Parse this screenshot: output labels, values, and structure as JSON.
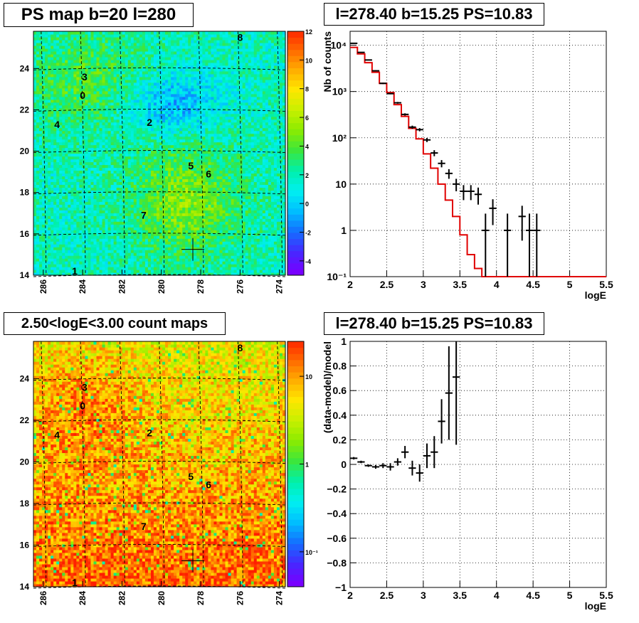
{
  "panels": {
    "ps_map": {
      "title": "PS map b=20 l=280"
    },
    "spectrum": {
      "title": "l=278.40 b=15.25 PS=10.83"
    },
    "count_map": {
      "title": "2.50<logE<3.00 count maps"
    },
    "residual": {
      "title": "l=278.40 b=15.25 PS=10.83"
    }
  },
  "chart_data": [
    {
      "type": "heatmap",
      "id": "ps_map",
      "title": "PS map b=20 l=280",
      "x_ticks": [
        "286",
        "284",
        "282",
        "280",
        "278",
        "276",
        "274"
      ],
      "x_tick_values": [
        286,
        284,
        282,
        280,
        278,
        276,
        274
      ],
      "xlim": [
        286.5,
        273.7
      ],
      "y_ticks": [
        "14",
        "16",
        "18",
        "20",
        "22",
        "24"
      ],
      "y_tick_values": [
        14,
        16,
        18,
        20,
        22,
        24
      ],
      "ylim": [
        14,
        25.8
      ],
      "colorbar_ticks": [
        "12",
        "10",
        "8",
        "6",
        "4",
        "2",
        "0",
        "-2",
        "-4"
      ],
      "colorbar_tick_values": [
        12,
        10,
        8,
        6,
        4,
        2,
        0,
        -2,
        -4
      ],
      "zlim": [
        -5,
        12
      ],
      "grid": true,
      "source_labels": [
        {
          "label": "0",
          "l": 284.0,
          "b": 22.7
        },
        {
          "label": "1",
          "l": 284.4,
          "b": 14.2
        },
        {
          "label": "2",
          "l": 280.6,
          "b": 21.4
        },
        {
          "label": "3",
          "l": 283.9,
          "b": 23.6
        },
        {
          "label": "4",
          "l": 285.3,
          "b": 21.3
        },
        {
          "label": "5",
          "l": 278.5,
          "b": 19.3
        },
        {
          "label": "6",
          "l": 277.6,
          "b": 18.9
        },
        {
          "label": "7",
          "l": 280.9,
          "b": 16.9
        },
        {
          "label": "8",
          "l": 276.0,
          "b": 25.5
        }
      ],
      "marker": {
        "l": 278.4,
        "b": 15.25
      }
    },
    {
      "type": "line",
      "id": "spectrum",
      "title": "l=278.40 b=15.25 PS=10.83",
      "xlabel": "logE",
      "ylabel": "Nb of counts",
      "y_scale": "log",
      "xlim": [
        2,
        5.5
      ],
      "ylim": [
        0.1,
        20000
      ],
      "x_ticks": [
        "2",
        "2.5",
        "3",
        "3.5",
        "4",
        "4.5",
        "5",
        "5.5"
      ],
      "x_tick_values": [
        2,
        2.5,
        3,
        3.5,
        4,
        4.5,
        5,
        5.5
      ],
      "y_ticks": [
        "10⁻¹",
        "1",
        "10",
        "10²",
        "10³",
        "10⁴"
      ],
      "y_tick_values": [
        0.1,
        1,
        10,
        100,
        1000,
        10000
      ],
      "grid": true,
      "model_bins": {
        "edges": [
          2.0,
          2.1,
          2.2,
          2.3,
          2.4,
          2.5,
          2.6,
          2.7,
          2.8,
          2.9,
          3.0,
          3.1,
          3.2,
          3.3,
          3.4,
          3.5,
          3.6,
          3.7,
          3.8,
          3.9,
          4.0,
          4.1,
          4.2,
          4.3,
          4.4,
          4.5,
          4.6,
          4.7,
          4.8,
          4.9,
          5.0,
          5.1,
          5.2,
          5.3,
          5.4,
          5.5
        ],
        "values": [
          9000,
          6500,
          4200,
          2600,
          1500,
          950,
          520,
          290,
          160,
          95,
          45,
          22,
          10,
          4.5,
          2,
          0.8,
          0.3,
          0.15,
          0.1,
          0.1,
          0.1,
          0.1,
          0.1,
          0.1,
          0.1,
          0.1,
          0.1,
          0.1,
          0.1,
          0.1,
          0.1,
          0.1,
          0.1,
          0.1,
          0.1
        ]
      },
      "data_points": [
        {
          "x": 2.05,
          "y": 11000,
          "lo": 10800,
          "hi": 11200
        },
        {
          "x": 2.15,
          "y": 7000,
          "lo": 6850,
          "hi": 7150
        },
        {
          "x": 2.25,
          "y": 4800,
          "lo": 4700,
          "hi": 4900
        },
        {
          "x": 2.35,
          "y": 2800,
          "lo": 2720,
          "hi": 2880
        },
        {
          "x": 2.45,
          "y": 1500,
          "lo": 1450,
          "hi": 1550
        },
        {
          "x": 2.55,
          "y": 900,
          "lo": 870,
          "hi": 930
        },
        {
          "x": 2.65,
          "y": 570,
          "lo": 545,
          "hi": 595
        },
        {
          "x": 2.75,
          "y": 320,
          "lo": 302,
          "hi": 338
        },
        {
          "x": 2.85,
          "y": 170,
          "lo": 157,
          "hi": 183
        },
        {
          "x": 2.95,
          "y": 150,
          "lo": 138,
          "hi": 162
        },
        {
          "x": 3.05,
          "y": 90,
          "lo": 81,
          "hi": 99
        },
        {
          "x": 3.15,
          "y": 47,
          "lo": 40,
          "hi": 54
        },
        {
          "x": 3.25,
          "y": 28,
          "lo": 23,
          "hi": 33
        },
        {
          "x": 3.35,
          "y": 17,
          "lo": 13,
          "hi": 21
        },
        {
          "x": 3.45,
          "y": 10,
          "lo": 7,
          "hi": 13
        },
        {
          "x": 3.55,
          "y": 7,
          "lo": 4.5,
          "hi": 9.5
        },
        {
          "x": 3.65,
          "y": 7,
          "lo": 4.5,
          "hi": 9.5
        },
        {
          "x": 3.75,
          "y": 6,
          "lo": 3.6,
          "hi": 8.4
        },
        {
          "x": 3.85,
          "y": 1,
          "lo": 0.1,
          "hi": 2.3
        },
        {
          "x": 3.95,
          "y": 3,
          "lo": 1.3,
          "hi": 4.7
        },
        {
          "x": 4.15,
          "y": 1,
          "lo": 0.1,
          "hi": 2.3
        },
        {
          "x": 4.35,
          "y": 2,
          "lo": 0.6,
          "hi": 3.4
        },
        {
          "x": 4.45,
          "y": 1,
          "lo": 0.1,
          "hi": 2.3
        },
        {
          "x": 4.55,
          "y": 1,
          "lo": 0.1,
          "hi": 2.3
        }
      ],
      "model_color": "#e00000",
      "data_color": "#000000"
    },
    {
      "type": "heatmap",
      "id": "count_map",
      "title": "2.50<logE<3.00 count maps",
      "x_ticks": [
        "286",
        "284",
        "282",
        "280",
        "278",
        "276",
        "274"
      ],
      "x_tick_values": [
        286,
        284,
        282,
        280,
        278,
        276,
        274
      ],
      "xlim": [
        286.5,
        273.7
      ],
      "y_ticks": [
        "14",
        "16",
        "18",
        "20",
        "22",
        "24"
      ],
      "y_tick_values": [
        14,
        16,
        18,
        20,
        22,
        24
      ],
      "ylim": [
        14,
        25.8
      ],
      "colorbar_ticks": [
        "10",
        "1",
        "10⁻¹"
      ],
      "colorbar_tick_values": [
        10,
        1,
        0.1
      ],
      "z_scale": "log",
      "zlim": [
        0.04,
        25
      ],
      "grid": true,
      "source_labels": [
        {
          "label": "0",
          "l": 284.0,
          "b": 22.7
        },
        {
          "label": "1",
          "l": 284.4,
          "b": 14.2
        },
        {
          "label": "2",
          "l": 280.6,
          "b": 21.4
        },
        {
          "label": "3",
          "l": 283.9,
          "b": 23.6
        },
        {
          "label": "4",
          "l": 285.3,
          "b": 21.3
        },
        {
          "label": "5",
          "l": 278.5,
          "b": 19.3
        },
        {
          "label": "6",
          "l": 277.6,
          "b": 18.9
        },
        {
          "label": "7",
          "l": 280.9,
          "b": 16.9
        },
        {
          "label": "8",
          "l": 276.0,
          "b": 25.5
        }
      ],
      "marker": {
        "l": 278.4,
        "b": 15.25
      }
    },
    {
      "type": "scatter",
      "id": "residual",
      "title": "l=278.40 b=15.25 PS=10.83",
      "xlabel": "logE",
      "ylabel": "(data-model)/model",
      "xlim": [
        2,
        5.5
      ],
      "ylim": [
        -1,
        1
      ],
      "x_ticks": [
        "2",
        "2.5",
        "3",
        "3.5",
        "4",
        "4.5",
        "5",
        "5.5"
      ],
      "x_tick_values": [
        2,
        2.5,
        3,
        3.5,
        4,
        4.5,
        5,
        5.5
      ],
      "y_ticks": [
        "−1",
        "−0.8",
        "−0.6",
        "−0.4",
        "−0.2",
        "0",
        "0.2",
        "0.4",
        "0.6",
        "0.8",
        "1"
      ],
      "y_tick_values": [
        -1,
        -0.8,
        -0.6,
        -0.4,
        -0.2,
        0,
        0.2,
        0.4,
        0.6,
        0.8,
        1
      ],
      "grid": true,
      "data_points": [
        {
          "x": 2.05,
          "y": 0.05,
          "err": 0.01
        },
        {
          "x": 2.15,
          "y": 0.02,
          "err": 0.01
        },
        {
          "x": 2.25,
          "y": -0.01,
          "err": 0.01
        },
        {
          "x": 2.35,
          "y": -0.02,
          "err": 0.015
        },
        {
          "x": 2.45,
          "y": -0.01,
          "err": 0.02
        },
        {
          "x": 2.55,
          "y": -0.02,
          "err": 0.03
        },
        {
          "x": 2.65,
          "y": 0.02,
          "err": 0.03
        },
        {
          "x": 2.75,
          "y": 0.1,
          "err": 0.05
        },
        {
          "x": 2.85,
          "y": -0.03,
          "err": 0.06
        },
        {
          "x": 2.95,
          "y": -0.07,
          "err": 0.07
        },
        {
          "x": 3.05,
          "y": 0.07,
          "err": 0.1
        },
        {
          "x": 3.15,
          "y": 0.1,
          "err": 0.13
        },
        {
          "x": 3.25,
          "y": 0.35,
          "err": 0.18
        },
        {
          "x": 3.35,
          "y": 0.58,
          "err": 0.38
        },
        {
          "x": 3.45,
          "y": 0.71,
          "err": 0.55
        }
      ],
      "data_color": "#000000"
    }
  ]
}
